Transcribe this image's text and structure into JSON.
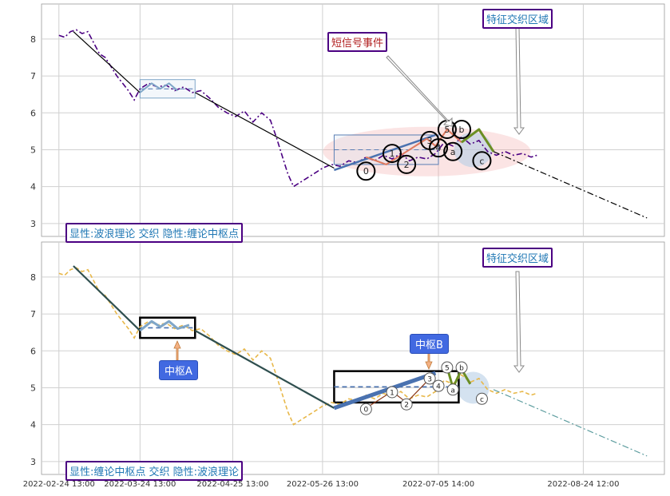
{
  "chart_data": [
    {
      "type": "line",
      "panel": "top",
      "title": "",
      "xlabel": "",
      "ylabel": "",
      "ylim": [
        2.65,
        8.95
      ],
      "yticks": [
        3,
        4,
        5,
        6,
        7,
        8
      ],
      "grid": true,
      "price_series": {
        "style": "dash-dot",
        "color": "#4b0082",
        "points": [
          [
            "2022-02-24",
            8.1
          ],
          [
            "2022-02-26",
            8.05
          ],
          [
            "2022-02-28",
            8.2
          ],
          [
            "2022-03-02",
            8.25
          ],
          [
            "2022-03-04",
            8.15
          ],
          [
            "2022-03-06",
            8.2
          ],
          [
            "2022-03-08",
            7.9
          ],
          [
            "2022-03-10",
            7.6
          ],
          [
            "2022-03-12",
            7.5
          ],
          [
            "2022-03-14",
            7.25
          ],
          [
            "2022-03-16",
            7.0
          ],
          [
            "2022-03-18",
            6.8
          ],
          [
            "2022-03-20",
            6.6
          ],
          [
            "2022-03-22",
            6.35
          ],
          [
            "2022-03-24",
            6.65
          ],
          [
            "2022-03-27",
            6.8
          ],
          [
            "2022-03-30",
            6.7
          ],
          [
            "2022-04-02",
            6.75
          ],
          [
            "2022-04-05",
            6.6
          ],
          [
            "2022-04-08",
            6.7
          ],
          [
            "2022-04-11",
            6.55
          ],
          [
            "2022-04-14",
            6.6
          ],
          [
            "2022-04-17",
            6.4
          ],
          [
            "2022-04-20",
            6.15
          ],
          [
            "2022-04-23",
            6.0
          ],
          [
            "2022-04-26",
            5.9
          ],
          [
            "2022-04-29",
            6.05
          ],
          [
            "2022-05-02",
            5.75
          ],
          [
            "2022-05-05",
            6.0
          ],
          [
            "2022-05-08",
            5.8
          ],
          [
            "2022-05-10",
            5.35
          ],
          [
            "2022-05-12",
            4.85
          ],
          [
            "2022-05-14",
            4.35
          ],
          [
            "2022-05-16",
            4.0
          ],
          [
            "2022-05-18",
            4.1
          ],
          [
            "2022-05-20",
            4.2
          ],
          [
            "2022-05-22",
            4.3
          ],
          [
            "2022-05-24",
            4.4
          ],
          [
            "2022-05-26",
            4.5
          ],
          [
            "2022-05-29",
            4.6
          ],
          [
            "2022-06-01",
            4.55
          ],
          [
            "2022-06-04",
            4.7
          ],
          [
            "2022-06-07",
            4.65
          ],
          [
            "2022-06-10",
            4.8
          ],
          [
            "2022-06-13",
            4.7
          ],
          [
            "2022-06-16",
            4.85
          ],
          [
            "2022-06-19",
            4.75
          ],
          [
            "2022-06-22",
            4.9
          ],
          [
            "2022-06-25",
            4.7
          ],
          [
            "2022-06-28",
            4.8
          ],
          [
            "2022-07-01",
            4.75
          ],
          [
            "2022-07-04",
            4.9
          ],
          [
            "2022-07-07",
            5.2
          ],
          [
            "2022-07-10",
            5.1
          ],
          [
            "2022-07-13",
            5.35
          ],
          [
            "2022-07-16",
            5.15
          ],
          [
            "2022-07-19",
            5.25
          ],
          [
            "2022-07-22",
            4.95
          ],
          [
            "2022-07-25",
            4.85
          ],
          [
            "2022-07-28",
            4.95
          ],
          [
            "2022-07-31",
            4.85
          ],
          [
            "2022-08-03",
            4.9
          ],
          [
            "2022-08-06",
            4.8
          ],
          [
            "2022-08-08",
            4.85
          ]
        ]
      },
      "trend_lines": [
        {
          "color": "#000000",
          "points": [
            [
              "2022-03-01",
              8.2
            ],
            [
              "2022-03-24",
              6.55
            ]
          ]
        },
        {
          "color": "#000000",
          "points": [
            [
              "2022-04-12",
              6.55
            ],
            [
              "2022-05-30",
              4.5
            ]
          ]
        }
      ],
      "center_boxes": [
        {
          "x": [
            "2022-03-24",
            "2022-04-12"
          ],
          "y": [
            6.4,
            6.9
          ],
          "style": "thin",
          "color": "#7fa6c8"
        },
        {
          "x": [
            "2022-05-30",
            "2022-07-05"
          ],
          "y": [
            4.6,
            5.4
          ],
          "style": "thin",
          "color": "#5a7fb4"
        }
      ],
      "waves": [
        {
          "color": "#4a72b0",
          "width": 2.5,
          "points": [
            [
              "2022-05-30",
              4.45
            ],
            [
              "2022-07-04",
              5.4
            ]
          ]
        },
        {
          "color": "#e07a5f",
          "width": 2,
          "points": [
            [
              "2022-06-10",
              4.8
            ],
            [
              "2022-06-17",
              4.6
            ],
            [
              "2022-07-01",
              5.3
            ],
            [
              "2022-07-04",
              5.1
            ],
            [
              "2022-07-08",
              5.55
            ],
            [
              "2022-07-13",
              5.2
            ]
          ]
        },
        {
          "color": "#6b8e23",
          "width": 3,
          "points": [
            [
              "2022-07-13",
              5.2
            ],
            [
              "2022-07-19",
              5.55
            ],
            [
              "2022-07-24",
              4.95
            ]
          ]
        },
        {
          "color": "#7fa6c8",
          "width": 2,
          "points": [
            [
              "2022-03-24",
              6.55
            ],
            [
              "2022-03-28",
              6.8
            ],
            [
              "2022-03-31",
              6.65
            ],
            [
              "2022-04-03",
              6.8
            ],
            [
              "2022-04-06",
              6.6
            ]
          ]
        }
      ],
      "projection": {
        "style": "dash-dot",
        "color": "#000000",
        "points": [
          [
            "2022-07-24",
            4.95
          ],
          [
            "2022-09-15",
            3.15
          ]
        ]
      },
      "wave_labels": [
        {
          "text": "0",
          "x": "2022-06-10",
          "y": 4.42
        },
        {
          "text": "1",
          "x": "2022-06-19",
          "y": 4.9
        },
        {
          "text": "2",
          "x": "2022-06-24",
          "y": 4.6
        },
        {
          "text": "3",
          "x": "2022-07-02",
          "y": 5.25
        },
        {
          "text": "4",
          "x": "2022-07-05",
          "y": 5.05
        },
        {
          "text": "5",
          "x": "2022-07-08",
          "y": 5.55
        },
        {
          "text": "a",
          "x": "2022-07-10",
          "y": 4.95
        },
        {
          "text": "b",
          "x": "2022-07-13",
          "y": 5.55
        },
        {
          "text": "c",
          "x": "2022-07-20",
          "y": 4.7
        }
      ],
      "callouts": [
        {
          "text": "短信号事件",
          "kind": "red"
        },
        {
          "text": "特征交织区域",
          "kind": "blue"
        }
      ],
      "legend_text": "显性:波浪理论 交织 隐性:缠论中枢点"
    },
    {
      "type": "line",
      "panel": "bottom",
      "title": "",
      "xlabel": "",
      "ylabel": "",
      "ylim": [
        2.65,
        8.95
      ],
      "yticks": [
        3,
        4,
        5,
        6,
        7,
        8
      ],
      "grid": true,
      "price_series": {
        "style": "dashed",
        "color": "#e8b84a",
        "points": [
          [
            "2022-02-24",
            8.1
          ],
          [
            "2022-02-26",
            8.05
          ],
          [
            "2022-02-28",
            8.2
          ],
          [
            "2022-03-02",
            8.25
          ],
          [
            "2022-03-04",
            8.15
          ],
          [
            "2022-03-06",
            8.2
          ],
          [
            "2022-03-08",
            7.9
          ],
          [
            "2022-03-10",
            7.6
          ],
          [
            "2022-03-12",
            7.5
          ],
          [
            "2022-03-14",
            7.25
          ],
          [
            "2022-03-16",
            7.0
          ],
          [
            "2022-03-18",
            6.8
          ],
          [
            "2022-03-20",
            6.6
          ],
          [
            "2022-03-22",
            6.35
          ],
          [
            "2022-03-24",
            6.65
          ],
          [
            "2022-03-27",
            6.8
          ],
          [
            "2022-03-30",
            6.7
          ],
          [
            "2022-04-02",
            6.75
          ],
          [
            "2022-04-05",
            6.6
          ],
          [
            "2022-04-08",
            6.7
          ],
          [
            "2022-04-11",
            6.55
          ],
          [
            "2022-04-14",
            6.6
          ],
          [
            "2022-04-17",
            6.4
          ],
          [
            "2022-04-20",
            6.15
          ],
          [
            "2022-04-23",
            6.0
          ],
          [
            "2022-04-26",
            5.9
          ],
          [
            "2022-04-29",
            6.05
          ],
          [
            "2022-05-02",
            5.75
          ],
          [
            "2022-05-05",
            6.0
          ],
          [
            "2022-05-08",
            5.8
          ],
          [
            "2022-05-10",
            5.35
          ],
          [
            "2022-05-12",
            4.85
          ],
          [
            "2022-05-14",
            4.35
          ],
          [
            "2022-05-16",
            4.0
          ],
          [
            "2022-05-18",
            4.1
          ],
          [
            "2022-05-20",
            4.2
          ],
          [
            "2022-05-22",
            4.3
          ],
          [
            "2022-05-24",
            4.4
          ],
          [
            "2022-05-26",
            4.5
          ],
          [
            "2022-05-29",
            4.6
          ],
          [
            "2022-06-01",
            4.55
          ],
          [
            "2022-06-04",
            4.7
          ],
          [
            "2022-06-07",
            4.65
          ],
          [
            "2022-06-10",
            4.8
          ],
          [
            "2022-06-13",
            4.7
          ],
          [
            "2022-06-16",
            4.85
          ],
          [
            "2022-06-19",
            4.75
          ],
          [
            "2022-06-22",
            4.9
          ],
          [
            "2022-06-25",
            4.7
          ],
          [
            "2022-06-28",
            4.8
          ],
          [
            "2022-07-01",
            4.75
          ],
          [
            "2022-07-04",
            4.9
          ],
          [
            "2022-07-07",
            5.2
          ],
          [
            "2022-07-10",
            5.1
          ],
          [
            "2022-07-13",
            5.35
          ],
          [
            "2022-07-16",
            5.15
          ],
          [
            "2022-07-19",
            5.25
          ],
          [
            "2022-07-22",
            4.95
          ],
          [
            "2022-07-25",
            4.85
          ],
          [
            "2022-07-28",
            4.95
          ],
          [
            "2022-07-31",
            4.85
          ],
          [
            "2022-08-03",
            4.9
          ],
          [
            "2022-08-06",
            4.8
          ],
          [
            "2022-08-08",
            4.85
          ]
        ]
      },
      "trend_lines": [
        {
          "color": "#2f4f4f",
          "points": [
            [
              "2022-03-01",
              8.3
            ],
            [
              "2022-03-24",
              6.55
            ]
          ]
        },
        {
          "color": "#2f4f4f",
          "points": [
            [
              "2022-04-12",
              6.55
            ],
            [
              "2022-05-30",
              4.45
            ]
          ]
        }
      ],
      "center_boxes": [
        {
          "x": [
            "2022-03-24",
            "2022-04-12"
          ],
          "y": [
            6.35,
            6.9
          ],
          "style": "thick",
          "color": "#000000"
        },
        {
          "x": [
            "2022-05-30",
            "2022-07-12"
          ],
          "y": [
            4.6,
            5.45
          ],
          "style": "thick",
          "color": "#000000"
        }
      ],
      "waves": [
        {
          "color": "#4a72b0",
          "width": 5,
          "points": [
            [
              "2022-05-30",
              4.45
            ],
            [
              "2022-07-04",
              5.4
            ]
          ]
        },
        {
          "color": "#8b3a1a",
          "width": 1.2,
          "points": [
            [
              "2022-06-10",
              4.45
            ],
            [
              "2022-06-19",
              4.9
            ],
            [
              "2022-06-24",
              4.6
            ],
            [
              "2022-07-02",
              5.25
            ]
          ]
        },
        {
          "color": "#6b8e23",
          "width": 3,
          "points": [
            [
              "2022-07-08",
              5.55
            ],
            [
              "2022-07-10",
              5.0
            ],
            [
              "2022-07-13",
              5.5
            ],
            [
              "2022-07-16",
              5.1
            ]
          ]
        },
        {
          "color": "#7fa6c8",
          "width": 3,
          "points": [
            [
              "2022-03-24",
              6.55
            ],
            [
              "2022-03-28",
              6.8
            ],
            [
              "2022-03-31",
              6.65
            ],
            [
              "2022-04-03",
              6.8
            ],
            [
              "2022-04-06",
              6.6
            ],
            [
              "2022-04-10",
              6.7
            ]
          ]
        }
      ],
      "projection": {
        "style": "dash-dot",
        "color": "#5f9ea0",
        "points": [
          [
            "2022-07-24",
            4.95
          ],
          [
            "2022-09-15",
            3.15
          ]
        ]
      },
      "wave_labels": [
        {
          "text": "0",
          "x": "2022-06-10",
          "y": 4.42
        },
        {
          "text": "1",
          "x": "2022-06-19",
          "y": 4.88
        },
        {
          "text": "2",
          "x": "2022-06-24",
          "y": 4.55
        },
        {
          "text": "3",
          "x": "2022-07-02",
          "y": 5.25
        },
        {
          "text": "4",
          "x": "2022-07-05",
          "y": 5.05
        },
        {
          "text": "5",
          "x": "2022-07-08",
          "y": 5.55
        },
        {
          "text": "a",
          "x": "2022-07-10",
          "y": 4.95
        },
        {
          "text": "b",
          "x": "2022-07-13",
          "y": 5.55
        },
        {
          "text": "c",
          "x": "2022-07-20",
          "y": 4.7
        }
      ],
      "callouts": [
        {
          "text": "特征交织区域",
          "kind": "blue"
        },
        {
          "text": "中枢A",
          "kind": "badge"
        },
        {
          "text": "中枢B",
          "kind": "badge"
        }
      ],
      "legend_text": "显性:缠论中枢点 交织 隐性:波浪理论"
    }
  ],
  "x_axis": {
    "range": [
      "2022-02-18",
      "2022-09-21"
    ],
    "ticks": [
      {
        "date": "2022-02-24",
        "label": "2022-02-24 13:00"
      },
      {
        "date": "2022-03-24",
        "label": "2022-03-24 13:00"
      },
      {
        "date": "2022-04-25",
        "label": "2022-04-25 13:00"
      },
      {
        "date": "2022-05-26",
        "label": "2022-05-26 13:00"
      },
      {
        "date": "2022-07-05",
        "label": "2022-07-05 14:00"
      },
      {
        "date": "2022-08-24",
        "label": "2022-08-24 12:00"
      }
    ]
  }
}
